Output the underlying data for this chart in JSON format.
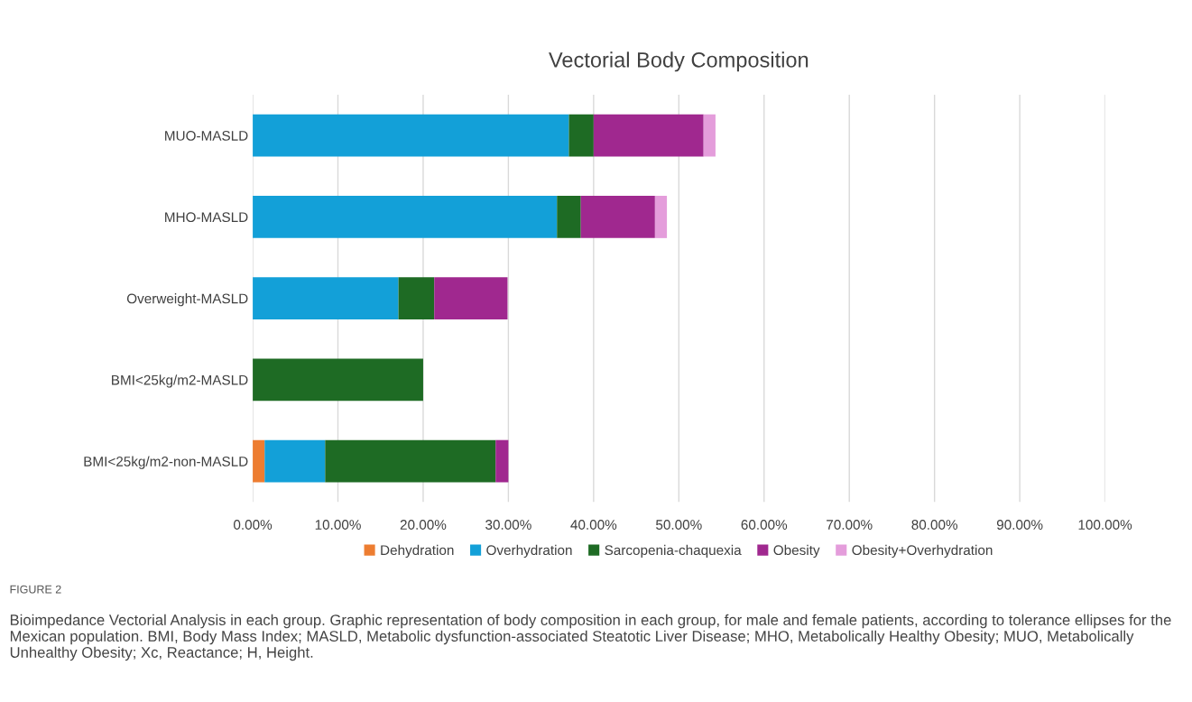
{
  "chart_data": {
    "type": "bar",
    "orientation": "horizontal",
    "stacked": true,
    "title": "Vectorial Body Composition",
    "categories": [
      "MUO-MASLD",
      "MHO-MASLD",
      "Overweight-MASLD",
      "BMI<25kg/m2-MASLD",
      "BMI<25kg/m2-non-MASLD"
    ],
    "series": [
      {
        "name": "Dehydration",
        "color": "#ed7d31",
        "values": [
          0,
          0,
          0,
          0,
          1.4
        ]
      },
      {
        "name": "Overhydration",
        "color": "#13a0d8",
        "values": [
          37.1,
          35.7,
          17.1,
          0,
          7.1
        ]
      },
      {
        "name": "Sarcopenia-chaquexia",
        "color": "#1e6b24",
        "values": [
          2.9,
          2.8,
          4.2,
          20.0,
          20.0
        ]
      },
      {
        "name": "Obesity",
        "color": "#a0288f",
        "values": [
          12.9,
          8.7,
          8.6,
          0,
          1.5
        ]
      },
      {
        "name": "Obesity+Overhydration",
        "color": "#e49ddb",
        "values": [
          1.4,
          1.4,
          0,
          0,
          0
        ]
      }
    ],
    "xlim": [
      0,
      100
    ],
    "xticks": [
      {
        "value": 0,
        "label": "0.00%"
      },
      {
        "value": 10,
        "label": "10.00%"
      },
      {
        "value": 20,
        "label": "20.00%"
      },
      {
        "value": 30,
        "label": "30.00%"
      },
      {
        "value": 40,
        "label": "40.00%"
      },
      {
        "value": 50,
        "label": "50.00%"
      },
      {
        "value": 60,
        "label": "60.00%"
      },
      {
        "value": 70,
        "label": "70.00%"
      },
      {
        "value": 80,
        "label": "80.00%"
      },
      {
        "value": 90,
        "label": "90.00%"
      },
      {
        "value": 100,
        "label": "100.00%"
      }
    ],
    "grid": "x",
    "legend": "bottom",
    "annotations": [
      "FIGURE 2",
      "Bioimpedance Vectorial Analysis in each group. Graphic representation of body composition in each group, for male and female patients, according to tolerance ellipses for the Mexican population. BMI, Body Mass Index; MASLD, Metabolic dysfunction-associated Steatotic Liver Disease; MHO, Metabolically Healthy Obesity; MUO, Metabolically Unhealthy Obesity; Xc, Reactance; H, Height."
    ]
  }
}
